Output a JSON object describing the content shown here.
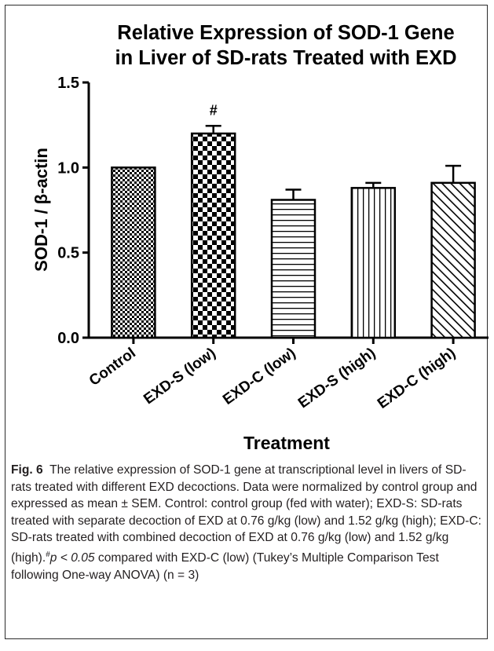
{
  "chart_data": {
    "type": "bar",
    "title_lines": [
      "Relative Expression of SOD-1 Gene",
      "in Liver of SD-rats Treated with EXD"
    ],
    "xlabel": "Treatment",
    "ylabel": "SOD-1 / β-actin",
    "ylim": [
      0,
      1.5
    ],
    "yticks": [
      "0.0",
      "0.5",
      "1.0",
      "1.5"
    ],
    "categories": [
      "Control",
      "EXD-S (low)",
      "EXD-C (low)",
      "EXD-S (high)",
      "EXD-C (high)"
    ],
    "values": [
      1.0,
      1.2,
      0.81,
      0.88,
      0.91
    ],
    "errors": [
      0,
      0.045,
      0.06,
      0.03,
      0.1
    ],
    "patterns": [
      "fine-checker",
      "coarse-checker",
      "horizontal-lines",
      "vertical-lines",
      "diagonal-lines"
    ],
    "annotations": [
      {
        "category": "EXD-S (low)",
        "text": "#"
      }
    ],
    "legend": "none",
    "grid": false
  },
  "caption": {
    "label": "Fig. 6",
    "text": "The relative expression of SOD-1 gene at transcriptional level in livers of SD-rats treated with different EXD decoctions. Data were normalized by control group and expressed as mean ± SEM. Control: control group (fed with water); EXD-S: SD-rats treated with separate decoction of EXD at 0.76 g/kg (low) and 1.52 g/kg (high); EXD-C: SD-rats treated with combined decoction of EXD at 0.76 g/kg (low) and 1.52 g/kg (high).",
    "sig_mark": "#",
    "sig_p": "p < 0.05",
    "sig_rest": " compared with EXD-C (low) (Tukey’s Multiple Comparison Test following One-way ANOVA) (n = 3)"
  },
  "colors": {
    "ink": "#000000",
    "caption_text": "#231f20",
    "frame": "#2b2b2b"
  }
}
